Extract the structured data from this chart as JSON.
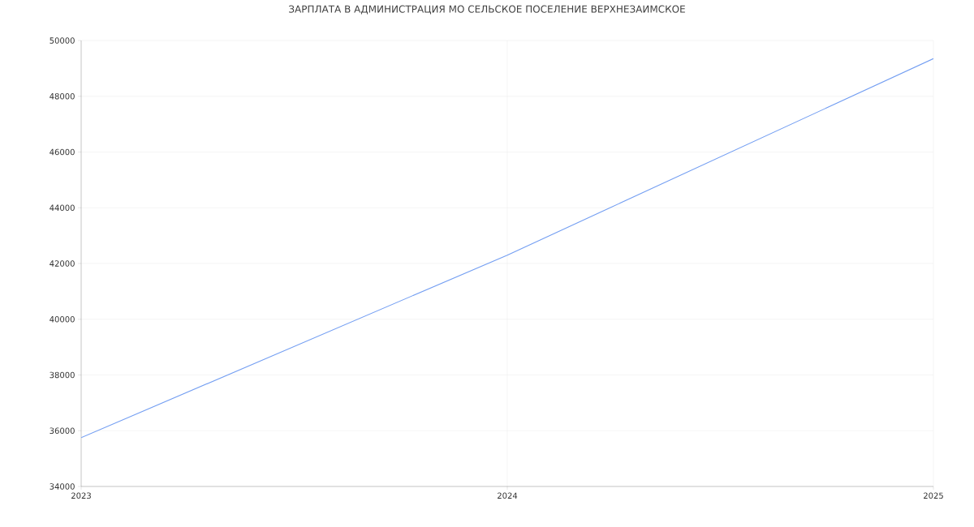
{
  "chart_data": {
    "type": "line",
    "title": "ЗАРПЛАТА В АДМИНИСТРАЦИЯ МО СЕЛЬСКОЕ ПОСЕЛЕНИЕ ВЕРХНЕЗАИМСКОЕ",
    "x": [
      2023,
      2024,
      2025
    ],
    "series": [
      {
        "color": "#739ef2",
        "values": [
          35750,
          42300,
          49350
        ]
      }
    ],
    "xlim": [
      2023,
      2025
    ],
    "xticks": [
      2023,
      2024,
      2025
    ],
    "ylim": [
      34000,
      50000
    ],
    "yticks": [
      34000,
      36000,
      38000,
      40000,
      42000,
      44000,
      46000,
      48000,
      50000
    ],
    "grid": true,
    "marker": "none",
    "line_style": "solid"
  }
}
